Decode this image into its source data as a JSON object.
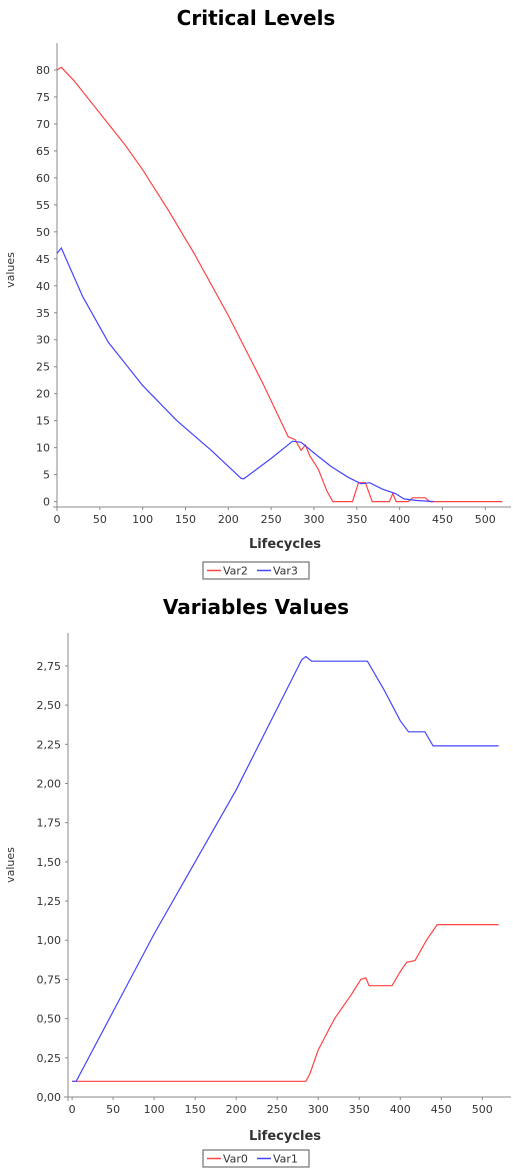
{
  "chart_data": [
    {
      "type": "line",
      "title": "Critical Levels",
      "xlabel": "Lifecycles",
      "ylabel": "values",
      "xlim": [
        0,
        530
      ],
      "ylim": [
        -1,
        85
      ],
      "x_ticks": [
        "0",
        "50",
        "100",
        "150",
        "200",
        "250",
        "300",
        "350",
        "400",
        "450",
        "500"
      ],
      "y_ticks": [
        "0",
        "5",
        "10",
        "15",
        "20",
        "25",
        "30",
        "35",
        "40",
        "45",
        "50",
        "55",
        "60",
        "65",
        "70",
        "75",
        "80"
      ],
      "legend_position": "bottom",
      "grid": false,
      "series": [
        {
          "name": "Var2",
          "color": "#ff4444",
          "points": [
            [
              0,
              80
            ],
            [
              5,
              80.5
            ],
            [
              20,
              78
            ],
            [
              50,
              72
            ],
            [
              80,
              66
            ],
            [
              100,
              61.5
            ],
            [
              130,
              54
            ],
            [
              160,
              46
            ],
            [
              200,
              34.5
            ],
            [
              240,
              22
            ],
            [
              270,
              12
            ],
            [
              278,
              11.5
            ],
            [
              285,
              9.5
            ],
            [
              290,
              10.5
            ],
            [
              295,
              8.5
            ],
            [
              305,
              6
            ],
            [
              315,
              2
            ],
            [
              322,
              0
            ],
            [
              345,
              0
            ],
            [
              352,
              3.5
            ],
            [
              360,
              3.5
            ],
            [
              368,
              0
            ],
            [
              388,
              0
            ],
            [
              392,
              1.5
            ],
            [
              396,
              0
            ],
            [
              410,
              0
            ],
            [
              415,
              0.7
            ],
            [
              430,
              0.7
            ],
            [
              435,
              0
            ],
            [
              520,
              0
            ]
          ]
        },
        {
          "name": "Var3",
          "color": "#4444ff",
          "points": [
            [
              0,
              46
            ],
            [
              5,
              47
            ],
            [
              30,
              38
            ],
            [
              60,
              29.5
            ],
            [
              100,
              21.5
            ],
            [
              140,
              15
            ],
            [
              180,
              9.5
            ],
            [
              215,
              4.3
            ],
            [
              218,
              4.2
            ],
            [
              250,
              8
            ],
            [
              275,
              11.2
            ],
            [
              285,
              11
            ],
            [
              300,
              9
            ],
            [
              320,
              6.5
            ],
            [
              340,
              4.5
            ],
            [
              355,
              3.3
            ],
            [
              365,
              3.5
            ],
            [
              380,
              2.3
            ],
            [
              395,
              1.5
            ],
            [
              405,
              0.5
            ],
            [
              420,
              0.2
            ],
            [
              440,
              0
            ]
          ]
        }
      ]
    },
    {
      "type": "line",
      "title": "Variables Values",
      "xlabel": "Lifecycles",
      "ylabel": "values",
      "xlim": [
        -5,
        535
      ],
      "ylim": [
        0,
        2.96
      ],
      "x_ticks": [
        "0",
        "50",
        "100",
        "150",
        "200",
        "250",
        "300",
        "350",
        "400",
        "450",
        "500"
      ],
      "y_ticks": [
        "0,00",
        "0,25",
        "0,50",
        "0,75",
        "1,00",
        "1,25",
        "1,50",
        "1,75",
        "2,00",
        "2,25",
        "2,50",
        "2,75"
      ],
      "legend_position": "bottom",
      "grid": false,
      "series": [
        {
          "name": "Var0",
          "color": "#ff4444",
          "points": [
            [
              0,
              0.1
            ],
            [
              285,
              0.1
            ],
            [
              290,
              0.15
            ],
            [
              300,
              0.3
            ],
            [
              320,
              0.5
            ],
            [
              340,
              0.65
            ],
            [
              352,
              0.75
            ],
            [
              358,
              0.76
            ],
            [
              362,
              0.71
            ],
            [
              390,
              0.71
            ],
            [
              400,
              0.8
            ],
            [
              408,
              0.86
            ],
            [
              418,
              0.87
            ],
            [
              432,
              1.0
            ],
            [
              445,
              1.1
            ],
            [
              520,
              1.1
            ]
          ]
        },
        {
          "name": "Var1",
          "color": "#4444ff",
          "points": [
            [
              0,
              0.1
            ],
            [
              5,
              0.1
            ],
            [
              100,
              1.04
            ],
            [
              200,
              1.96
            ],
            [
              280,
              2.79
            ],
            [
              285,
              2.81
            ],
            [
              292,
              2.78
            ],
            [
              360,
              2.78
            ],
            [
              380,
              2.6
            ],
            [
              392,
              2.48
            ],
            [
              400,
              2.4
            ],
            [
              410,
              2.33
            ],
            [
              430,
              2.33
            ],
            [
              440,
              2.24
            ],
            [
              520,
              2.24
            ]
          ]
        }
      ]
    }
  ]
}
